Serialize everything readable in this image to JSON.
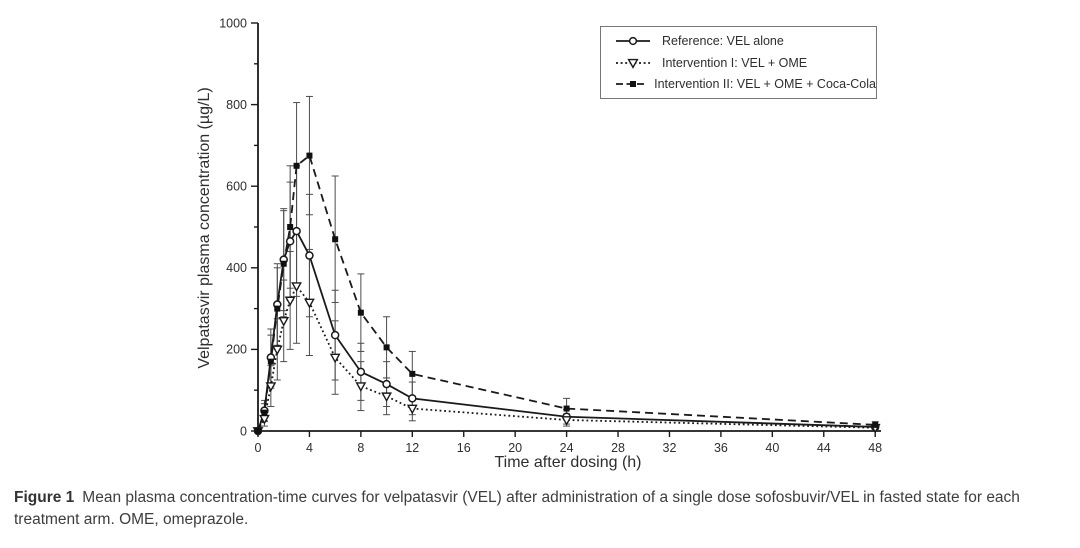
{
  "figure": {
    "caption_label": "Figure 1",
    "caption_text": "Mean plasma concentration-time curves for velpatasvir (VEL) after administration of a single dose sofosbuvir/VEL in fasted state for each treatment arm. OME, omeprazole."
  },
  "chart_data": {
    "type": "line",
    "title": "",
    "xlabel": "Time after dosing (h)",
    "ylabel": "Velpatasvir plasma concentration (µg/L)",
    "xlim": [
      0,
      48
    ],
    "ylim": [
      0,
      1000
    ],
    "x_ticks": [
      0,
      4,
      8,
      12,
      16,
      20,
      24,
      28,
      32,
      36,
      40,
      44,
      48
    ],
    "y_ticks": [
      0,
      200,
      400,
      600,
      800,
      1000
    ],
    "y_minor_tick_interval": 100,
    "grid": false,
    "legend_position": "top-right",
    "error_bars": "mean ± SD, vertical whiskers with caps",
    "x": [
      0,
      0.5,
      1,
      1.5,
      2,
      2.5,
      3,
      4,
      6,
      8,
      10,
      12,
      24,
      48
    ],
    "series": [
      {
        "name": "Reference: VEL alone",
        "line_style": "solid",
        "marker": "open-circle",
        "color": "#1a1a1a",
        "values": [
          0,
          50,
          180,
          310,
          420,
          465,
          490,
          430,
          235,
          145,
          115,
          80,
          35,
          10
        ],
        "sd": [
          0,
          25,
          70,
          100,
          125,
          145,
          160,
          150,
          110,
          70,
          55,
          40,
          18,
          5
        ]
      },
      {
        "name": "Intervention I: VEL + OME",
        "line_style": "dotted",
        "marker": "open-triangle-down",
        "color": "#1a1a1a",
        "values": [
          0,
          30,
          110,
          200,
          270,
          320,
          355,
          315,
          180,
          110,
          85,
          55,
          27,
          8
        ],
        "sd": [
          0,
          18,
          50,
          75,
          100,
          120,
          140,
          130,
          90,
          60,
          45,
          30,
          15,
          4
        ]
      },
      {
        "name": "Intervention II: VEL + OME + Coca-Cola",
        "line_style": "dashed",
        "marker": "filled-square",
        "color": "#1a1a1a",
        "values": [
          0,
          45,
          170,
          300,
          410,
          500,
          650,
          675,
          470,
          290,
          205,
          140,
          55,
          15
        ],
        "sd": [
          0,
          22,
          65,
          100,
          130,
          150,
          155,
          145,
          155,
          95,
          75,
          55,
          25,
          8
        ]
      }
    ]
  },
  "colors": {
    "axis": "#1a1a1a",
    "tick_text": "#2e2e2e",
    "error_bar": "#4d4d4d",
    "background": "#ffffff",
    "legend_border": "#767676",
    "caption_text": "#3d3d3d"
  }
}
